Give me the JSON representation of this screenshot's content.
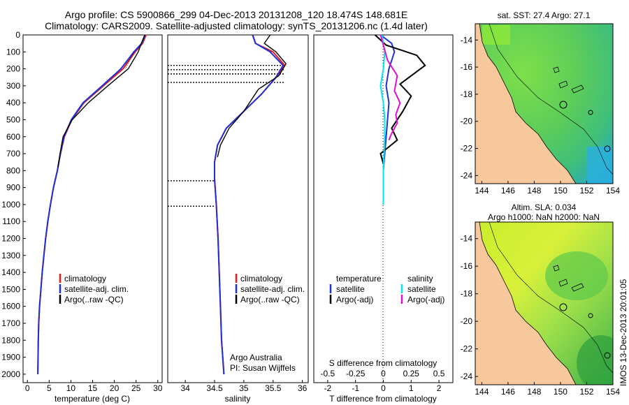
{
  "header": {
    "line1": "Argo profile: CS 5900866_299 04-Dec-2013 20131208_120 18.474S 148.681E",
    "line2": "Climatology: CARS2009. Satellite-adjusted climatology: synTS_20131206.nc (1.4d later)"
  },
  "side_note": "IMOS 13-Dec-2013 20:01:05",
  "colors": {
    "climatology": "#e41a1c",
    "satellite": "#1f2fd6",
    "argo": "#000000",
    "satellite_s": "#00e5ee",
    "argo_s": "#e010d0",
    "land": "#f7c89b"
  },
  "chart_data": [
    {
      "type": "line",
      "xlabel": "temperature (deg C)",
      "xlim": [
        -1,
        31
      ],
      "ylim": [
        0,
        2050
      ],
      "y_reversed": true,
      "xticks": [
        0,
        5,
        10,
        15,
        20,
        25,
        30
      ],
      "yticks": [
        0,
        100,
        200,
        300,
        400,
        500,
        600,
        700,
        800,
        900,
        1000,
        1100,
        1200,
        1300,
        1400,
        1500,
        1600,
        1700,
        1800,
        1900,
        2000
      ],
      "legend": [
        "climatology",
        "satellite-adj. clim.",
        "Argo(..raw -QC)"
      ],
      "series": [
        {
          "name": "climatology",
          "color": "#e41a1c",
          "x": [
            27.3,
            26.5,
            24.8,
            22.0,
            17.5,
            13.0,
            10.2,
            8.5,
            7.6,
            6.9,
            6.0,
            5.3,
            4.7,
            4.2,
            3.8,
            3.4,
            3.1,
            2.8,
            2.6,
            2.5,
            2.4
          ],
          "y": [
            0,
            50,
            100,
            200,
            300,
            400,
            500,
            600,
            700,
            800,
            900,
            1000,
            1100,
            1200,
            1300,
            1400,
            1500,
            1600,
            1700,
            1800,
            2000
          ]
        },
        {
          "name": "satellite-adj. clim.",
          "color": "#1f2fd6",
          "x": [
            27.1,
            26.3,
            24.5,
            21.5,
            17.2,
            12.8,
            10.1,
            8.4,
            7.6,
            6.9,
            6.0,
            5.3,
            4.7,
            4.2,
            3.8,
            3.4,
            3.1,
            2.8,
            2.6,
            2.5,
            2.4
          ],
          "y": [
            0,
            50,
            100,
            200,
            300,
            400,
            500,
            600,
            700,
            800,
            900,
            1000,
            1100,
            1200,
            1300,
            1400,
            1500,
            1600,
            1700,
            1800,
            2000
          ]
        },
        {
          "name": "Argo(..raw -QC)",
          "color": "#000000",
          "x": [
            27.0,
            26.2,
            25.5,
            23.2,
            18.5,
            14.0,
            10.3,
            8.2,
            7.5,
            7.0
          ],
          "y": [
            0,
            50,
            100,
            200,
            300,
            400,
            500,
            600,
            700,
            780
          ]
        }
      ]
    },
    {
      "type": "line",
      "xlabel": "salinity",
      "xlim": [
        33.7,
        36.1
      ],
      "ylim": [
        0,
        2050
      ],
      "y_reversed": true,
      "xticks": [
        34,
        34.5,
        35,
        35.5,
        36
      ],
      "legend": [
        "climatology",
        "satellite-adj. clim.",
        "Argo(..raw -QC)"
      ],
      "annotation": [
        "Argo Australia",
        "PI: Susan Wijffels"
      ],
      "series": [
        {
          "name": "climatology",
          "color": "#e41a1c",
          "x": [
            35.15,
            35.2,
            35.5,
            35.7,
            35.55,
            35.3,
            35.0,
            34.7,
            34.55,
            34.5,
            34.5,
            34.53,
            34.56,
            34.58,
            34.6,
            34.62,
            34.64,
            34.66
          ],
          "y": [
            0,
            50,
            100,
            180,
            250,
            350,
            450,
            550,
            650,
            750,
            850,
            1000,
            1200,
            1400,
            1600,
            1800,
            1900,
            2000
          ]
        },
        {
          "name": "satellite-adj. clim.",
          "color": "#1f2fd6",
          "x": [
            35.15,
            35.2,
            35.45,
            35.67,
            35.55,
            35.3,
            35.0,
            34.7,
            34.55,
            34.5,
            34.5,
            34.53,
            34.56,
            34.58,
            34.6,
            34.62,
            34.64,
            34.66
          ],
          "y": [
            0,
            50,
            100,
            180,
            250,
            350,
            450,
            550,
            650,
            750,
            850,
            1000,
            1200,
            1400,
            1600,
            1800,
            1900,
            2000
          ]
        },
        {
          "name": "Argo(..raw -QC)",
          "color": "#000000",
          "x": [
            35.45,
            35.35,
            35.55,
            35.72,
            35.6,
            35.25,
            35.0,
            34.75,
            34.6,
            34.55
          ],
          "y": [
            0,
            50,
            100,
            170,
            240,
            320,
            450,
            550,
            650,
            720
          ]
        }
      ],
      "dotted_depths": [
        180,
        205,
        230,
        280,
        860,
        1010
      ]
    },
    {
      "type": "line",
      "xlabel": "T difference from climatology",
      "xlabel_top": "S difference from climatology",
      "xlim": [
        -2.5,
        2.5
      ],
      "ylim": [
        0,
        2050
      ],
      "y_reversed": true,
      "xticks_bottom": [
        -2,
        -1,
        0,
        1,
        2
      ],
      "xticks_top": [
        -0.5,
        -0.25,
        0,
        0.25,
        0.5
      ],
      "legend_left": [
        "temperature",
        "satellite",
        "Argo(-adj)"
      ],
      "legend_right": [
        "salinity",
        "satellite",
        "Argo(-adj)"
      ],
      "series": [
        {
          "name": "satellite",
          "color": "#1f2fd6",
          "x": [
            -0.1,
            0.3,
            0.4,
            0.2,
            0.1,
            0.2,
            0.15,
            0.1,
            0.05,
            0.0,
            0.0
          ],
          "y": [
            0,
            50,
            100,
            200,
            300,
            400,
            500,
            600,
            700,
            800,
            1000
          ]
        },
        {
          "name": "Argo(-adj)",
          "color": "#000000",
          "x": [
            -0.3,
            0.1,
            1.2,
            1.5,
            0.6,
            1.0,
            0.7,
            0.3,
            0.5,
            -0.1,
            0.0
          ],
          "y": [
            0,
            60,
            120,
            180,
            290,
            360,
            450,
            550,
            620,
            700,
            760
          ]
        },
        {
          "name": "satellite",
          "color": "#00e5ee",
          "x": [
            -0.05,
            0.05,
            0.0,
            -0.1,
            0.0,
            0.05,
            0.05,
            0.0,
            0.0
          ],
          "y": [
            0,
            100,
            200,
            300,
            400,
            500,
            600,
            800,
            1000
          ]
        },
        {
          "name": "Argo(-adj)",
          "color": "#e010d0",
          "x": [
            -0.1,
            0.0,
            0.15,
            0.5,
            0.4,
            0.6,
            0.45,
            0.5,
            0.3,
            0.2
          ],
          "y": [
            0,
            60,
            150,
            240,
            330,
            400,
            470,
            520,
            580,
            620
          ]
        }
      ]
    },
    {
      "type": "heatmap",
      "title": "sat. SST: 27.4 Argo: 27.1",
      "xlim": [
        143.5,
        154
      ],
      "ylim": [
        -24.6,
        -12.8
      ],
      "xticks": [
        144,
        146,
        148,
        150,
        152,
        154
      ],
      "yticks": [
        -14,
        -16,
        -18,
        -20,
        -22,
        -24
      ]
    },
    {
      "type": "heatmap",
      "title": [
        "Altim. SLA: 0.034",
        "Argo h1000: NaN h2000: NaN"
      ],
      "xlim": [
        143.5,
        154
      ],
      "ylim": [
        -24.6,
        -12.8
      ],
      "xticks": [
        144,
        146,
        148,
        150,
        152,
        154
      ],
      "yticks": [
        -14,
        -16,
        -18,
        -20,
        -22,
        -24
      ]
    }
  ]
}
